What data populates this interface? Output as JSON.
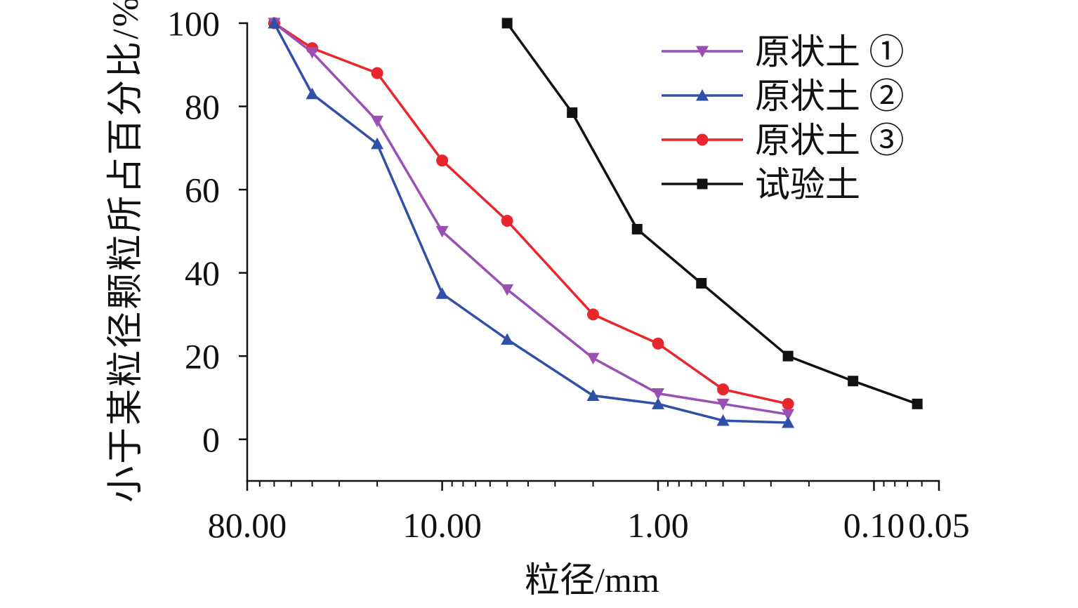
{
  "chart_data": {
    "type": "line",
    "xlabel": "粒径/mm",
    "ylabel": "小于某粒径颗粒所占百分比/%",
    "xscale": "log",
    "x_reversed": true,
    "xlim": [
      80,
      0.05
    ],
    "ylim": [
      -10,
      100
    ],
    "xticks": [
      80,
      10,
      1,
      0.1,
      0.05
    ],
    "xtick_labels": [
      "80.00",
      "10.00",
      "1.00",
      "0.10",
      "0.05"
    ],
    "yticks": [
      100,
      80,
      60,
      40,
      20,
      0
    ],
    "ytick_labels": [
      "100",
      "80",
      "60",
      "40",
      "20",
      "0"
    ],
    "grid": false,
    "legend_position": "top-right",
    "series": [
      {
        "name": "原状土 ①",
        "color": "#9B4FB5",
        "marker": "triangle-down",
        "x": [
          60,
          40,
          20,
          10,
          5,
          2,
          1,
          0.5,
          0.25
        ],
        "y": [
          100,
          93,
          76.5,
          50,
          36,
          19.5,
          11,
          8.5,
          6
        ]
      },
      {
        "name": "原状土 ②",
        "color": "#3050A8",
        "marker": "triangle-up",
        "x": [
          60,
          40,
          20,
          10,
          5,
          2,
          1,
          0.5,
          0.25
        ],
        "y": [
          100,
          83,
          71,
          35,
          24,
          10.5,
          8.5,
          4.5,
          4
        ]
      },
      {
        "name": "原状土 ③",
        "color": "#E8262B",
        "marker": "circle",
        "x": [
          60,
          40,
          20,
          10,
          5,
          2,
          1,
          0.5,
          0.25
        ],
        "y": [
          100,
          94,
          88,
          67,
          52.5,
          30,
          23,
          12,
          8.5
        ]
      },
      {
        "name": "试验土",
        "color": "#111111",
        "marker": "square",
        "x": [
          5,
          2.5,
          1.25,
          0.63,
          0.25,
          0.125,
          0.063
        ],
        "y": [
          100,
          78.5,
          50.5,
          37.5,
          20,
          14,
          8.5
        ]
      }
    ]
  }
}
